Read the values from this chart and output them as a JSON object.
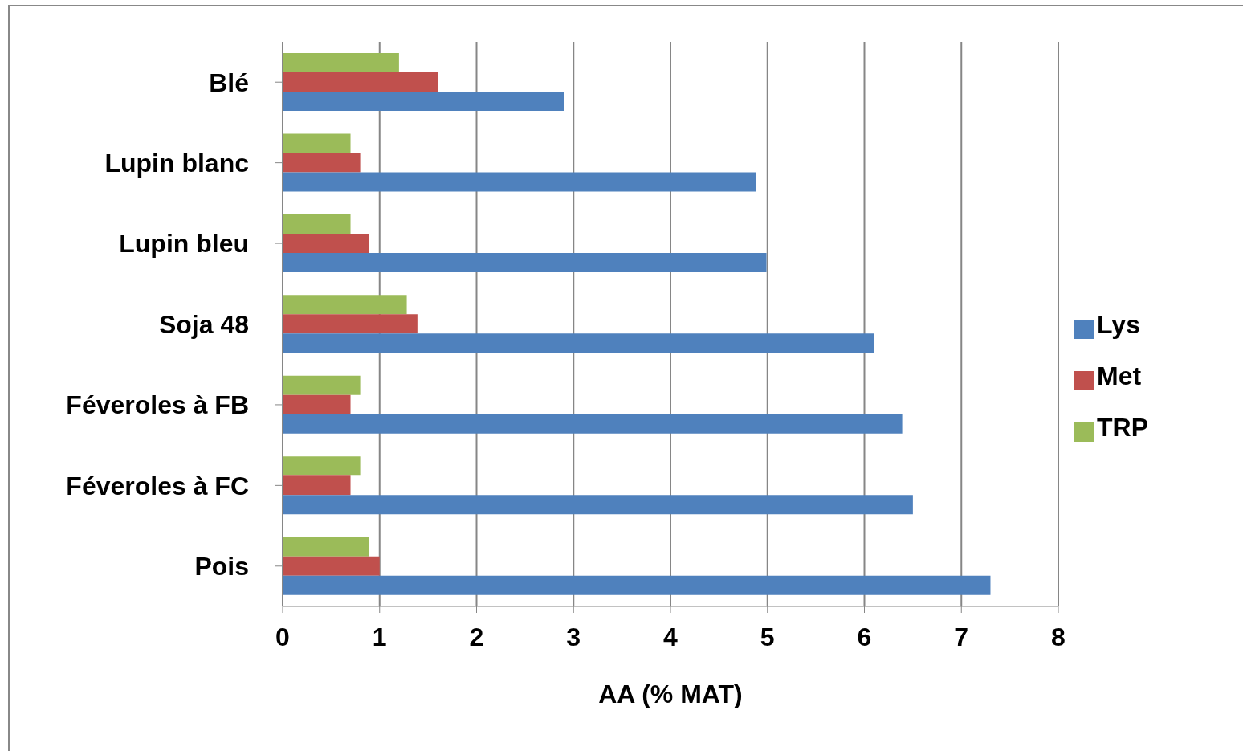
{
  "chart_data": {
    "type": "bar",
    "orientation": "horizontal",
    "xlabel": "AA (% MAT)",
    "categories": [
      "Blé",
      "Lupin blanc",
      "Lupin bleu",
      "Soja 48",
      "Féveroles à FB",
      "Féveroles à FC",
      "Pois"
    ],
    "series": [
      {
        "name": "TRP",
        "color": "#9bbb59",
        "values": [
          1.2,
          0.7,
          0.7,
          1.28,
          0.8,
          0.8,
          0.89
        ]
      },
      {
        "name": "Met",
        "color": "#c0504d",
        "values": [
          1.6,
          0.8,
          0.89,
          1.39,
          0.7,
          0.7,
          1.0
        ]
      },
      {
        "name": "Lys",
        "color": "#4f81bd",
        "values": [
          2.9,
          4.88,
          4.99,
          6.1,
          6.39,
          6.5,
          7.3
        ]
      }
    ],
    "xlim": [
      0,
      8
    ],
    "xticks": [
      0,
      1,
      2,
      3,
      4,
      5,
      6,
      7,
      8
    ],
    "grid": "x",
    "legend": "right"
  }
}
